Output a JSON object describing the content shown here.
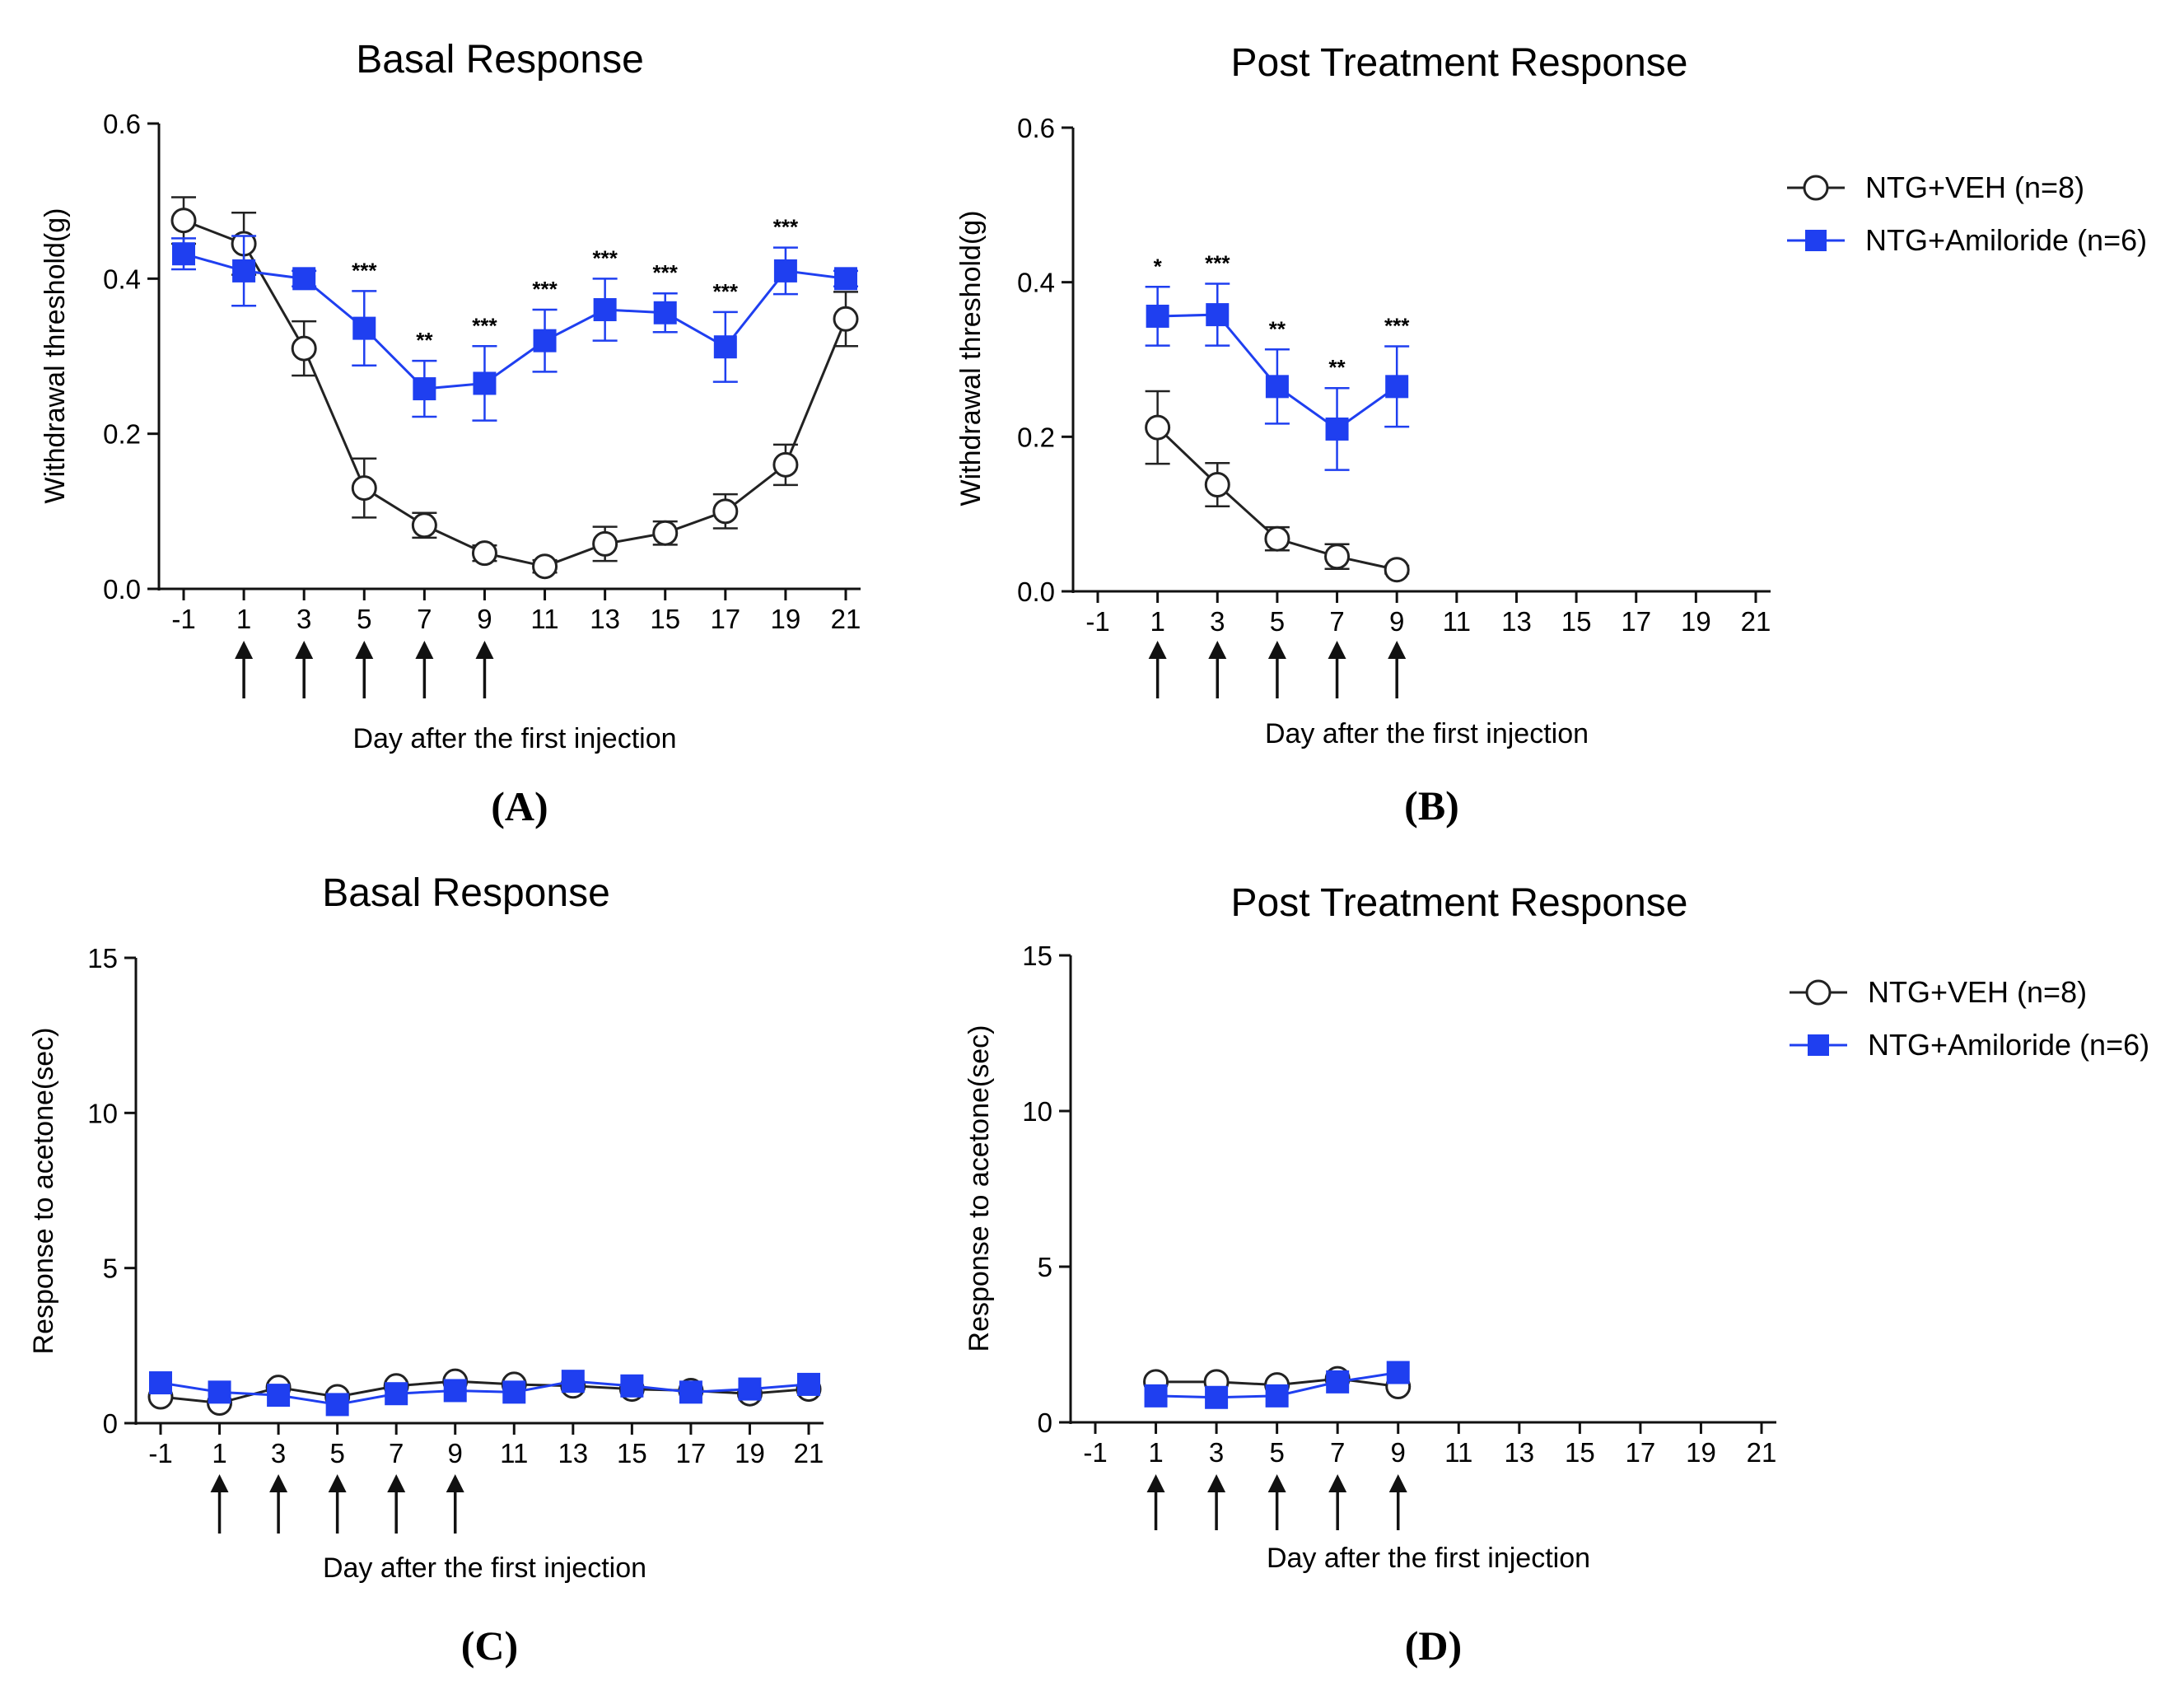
{
  "figure": {
    "legend": [
      {
        "label": "NTG+VEH (n=8)",
        "marker": "open-circle",
        "color": "#222222"
      },
      {
        "label": "NTG+Amiloride (n=6)",
        "marker": "filled-square",
        "color": "#1f3ff0"
      }
    ],
    "arrow_label": "↑"
  },
  "chart_data": [
    {
      "panel": "(A)",
      "type": "line",
      "title": "Basal Response",
      "xlabel": "Day after the first injection",
      "ylabel": "Withdrawal threshold(g)",
      "x": [
        -1,
        1,
        3,
        5,
        7,
        9,
        11,
        13,
        15,
        17,
        19,
        21
      ],
      "x_ticks": [
        "-1",
        "1",
        "3",
        "5",
        "7",
        "9",
        "11",
        "13",
        "15",
        "17",
        "19",
        "21"
      ],
      "y_ticks": [
        "0.0",
        "0.2",
        "0.4",
        "0.6"
      ],
      "ylim": [
        0,
        0.6
      ],
      "arrows_at": [
        1,
        3,
        5,
        7,
        9
      ],
      "series": [
        {
          "name": "NTG+VEH (n=8)",
          "values": [
            0.475,
            0.445,
            0.31,
            0.13,
            0.082,
            0.046,
            0.029,
            0.058,
            0.072,
            0.1,
            0.16,
            0.348
          ],
          "errors": [
            0.03,
            0.04,
            0.035,
            0.038,
            0.016,
            0.01,
            0.008,
            0.022,
            0.015,
            0.022,
            0.026,
            0.035
          ]
        },
        {
          "name": "NTG+Amiloride (n=6)",
          "values": [
            0.432,
            0.41,
            0.4,
            0.336,
            0.258,
            0.265,
            0.32,
            0.36,
            0.356,
            0.312,
            0.41,
            0.4
          ],
          "errors": [
            0.02,
            0.045,
            0.01,
            0.048,
            0.036,
            0.048,
            0.04,
            0.04,
            0.025,
            0.045,
            0.03,
            0.01
          ]
        }
      ],
      "significance": [
        "",
        "",
        "",
        "***",
        "**",
        "***",
        "***",
        "***",
        "***",
        "***",
        "***",
        ""
      ]
    },
    {
      "panel": "(B)",
      "type": "line",
      "title": "Post Treatment Response",
      "xlabel": "Day after the first injection",
      "ylabel": "Withdrawal threshold(g)",
      "x": [
        1,
        3,
        5,
        7,
        9
      ],
      "x_ticks": [
        "-1",
        "1",
        "3",
        "5",
        "7",
        "9",
        "11",
        "13",
        "15",
        "17",
        "19",
        "21"
      ],
      "y_ticks": [
        "0.0",
        "0.2",
        "0.4",
        "0.6"
      ],
      "ylim": [
        0,
        0.6
      ],
      "arrows_at": [
        1,
        3,
        5,
        7,
        9
      ],
      "series": [
        {
          "name": "NTG+VEH (n=8)",
          "values": [
            0.212,
            0.138,
            0.068,
            0.045,
            0.028
          ],
          "errors": [
            0.047,
            0.028,
            0.015,
            0.016,
            0.005
          ]
        },
        {
          "name": "NTG+Amiloride (n=6)",
          "values": [
            0.356,
            0.358,
            0.265,
            0.21,
            0.265
          ],
          "errors": [
            0.038,
            0.04,
            0.048,
            0.053,
            0.052
          ]
        }
      ],
      "significance": [
        "*",
        "***",
        "**",
        "**",
        "***"
      ]
    },
    {
      "panel": "(C)",
      "type": "line",
      "title": "Basal Response",
      "xlabel": "Day after the first injection",
      "ylabel": "Response to acetone(sec)",
      "x": [
        -1,
        1,
        3,
        5,
        7,
        9,
        11,
        13,
        15,
        17,
        19,
        21
      ],
      "x_ticks": [
        "-1",
        "1",
        "3",
        "5",
        "7",
        "9",
        "11",
        "13",
        "15",
        "17",
        "19",
        "21"
      ],
      "y_ticks": [
        "0",
        "5",
        "10",
        "15"
      ],
      "ylim": [
        0,
        15
      ],
      "arrows_at": [
        1,
        3,
        5,
        7,
        9
      ],
      "series": [
        {
          "name": "NTG+VEH (n=8)",
          "values": [
            0.85,
            0.65,
            1.15,
            0.85,
            1.2,
            1.35,
            1.25,
            1.2,
            1.1,
            1.05,
            0.95,
            1.1
          ]
        },
        {
          "name": "NTG+Amiloride (n=6)",
          "values": [
            1.3,
            1.0,
            0.9,
            0.6,
            0.95,
            1.05,
            1.0,
            1.35,
            1.2,
            1.0,
            1.1,
            1.25
          ]
        }
      ]
    },
    {
      "panel": "(D)",
      "type": "line",
      "title": "Post Treatment Response",
      "xlabel": "Day after the first injection",
      "ylabel": "Response to acetone(sec)",
      "x": [
        1,
        3,
        5,
        7,
        9
      ],
      "x_ticks": [
        "-1",
        "1",
        "3",
        "5",
        "7",
        "9",
        "11",
        "13",
        "15",
        "17",
        "19",
        "21"
      ],
      "y_ticks": [
        "0",
        "5",
        "10",
        "15"
      ],
      "ylim": [
        0,
        15
      ],
      "arrows_at": [
        1,
        3,
        5,
        7,
        9
      ],
      "series": [
        {
          "name": "NTG+VEH (n=8)",
          "values": [
            1.3,
            1.3,
            1.2,
            1.4,
            1.15
          ]
        },
        {
          "name": "NTG+Amiloride (n=6)",
          "values": [
            0.85,
            0.8,
            0.85,
            1.3,
            1.6
          ]
        }
      ]
    }
  ]
}
